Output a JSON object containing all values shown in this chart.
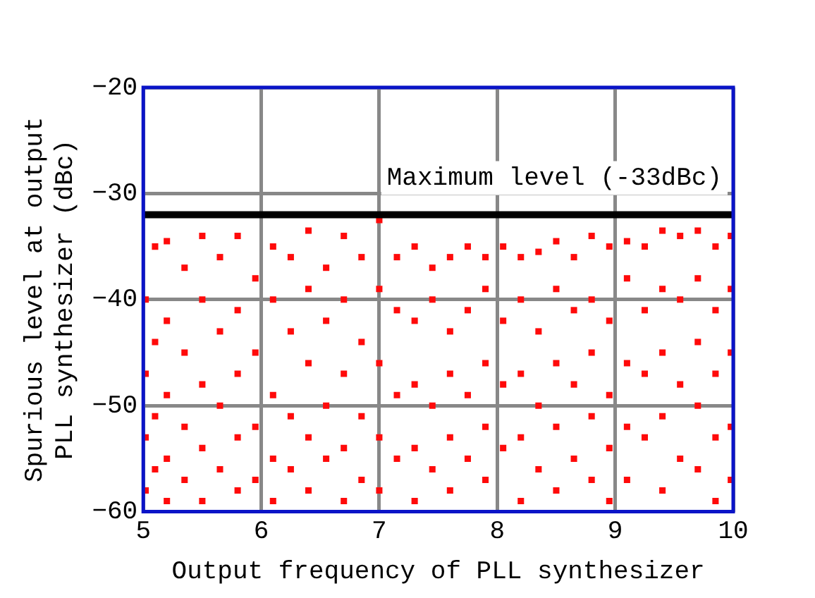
{
  "chart_data": {
    "type": "scatter",
    "xlabel": "Output frequency of PLL synthesizer",
    "ylabel": "Spurious level at output PLL synthesizer (dBc)",
    "xlim": [
      5,
      10
    ],
    "xticks": [
      5,
      6,
      7,
      8,
      9,
      10
    ],
    "ylim": [
      -60,
      -20
    ],
    "yticks": [
      -60,
      -50,
      -40,
      -30,
      -20
    ],
    "grid": true,
    "legend": false,
    "marker": "square",
    "ref_lines": [
      {
        "axis": "y",
        "value": -32,
        "label": "Maximum level (-33dBc)",
        "color": "#000000"
      }
    ],
    "series": [
      {
        "color": "#ff0a0a",
        "x": [
          5.02,
          5.02,
          5.02,
          5.02,
          5.1,
          5.1,
          5.1,
          5.1,
          5.2,
          5.2,
          5.2,
          5.2,
          5.2,
          5.35,
          5.35,
          5.35,
          5.35,
          5.5,
          5.5,
          5.5,
          5.5,
          5.5,
          5.65,
          5.65,
          5.65,
          5.65,
          5.8,
          5.8,
          5.8,
          5.8,
          5.8,
          5.95,
          5.95,
          5.95,
          5.95,
          6.1,
          6.1,
          6.1,
          6.1,
          6.1,
          6.25,
          6.25,
          6.25,
          6.25,
          6.4,
          6.4,
          6.4,
          6.4,
          6.4,
          6.55,
          6.55,
          6.55,
          6.55,
          6.7,
          6.7,
          6.7,
          6.7,
          6.7,
          6.85,
          6.85,
          6.85,
          6.85,
          7.0,
          7.0,
          7.0,
          7.0,
          7.0,
          7.15,
          7.15,
          7.15,
          7.15,
          7.3,
          7.3,
          7.3,
          7.3,
          7.3,
          7.45,
          7.45,
          7.45,
          7.45,
          7.6,
          7.6,
          7.6,
          7.6,
          7.6,
          7.75,
          7.75,
          7.75,
          7.75,
          7.9,
          7.9,
          7.9,
          7.9,
          7.9,
          8.05,
          8.05,
          8.05,
          8.05,
          8.2,
          8.2,
          8.2,
          8.2,
          8.2,
          8.35,
          8.35,
          8.35,
          8.35,
          8.5,
          8.5,
          8.5,
          8.5,
          8.5,
          8.65,
          8.65,
          8.65,
          8.65,
          8.8,
          8.8,
          8.8,
          8.8,
          8.8,
          8.95,
          8.95,
          8.95,
          8.95,
          8.95,
          9.1,
          9.1,
          9.1,
          9.1,
          9.1,
          9.25,
          9.25,
          9.25,
          9.25,
          9.4,
          9.4,
          9.4,
          9.4,
          9.4,
          9.55,
          9.55,
          9.55,
          9.55,
          9.7,
          9.7,
          9.7,
          9.7,
          9.7,
          9.85,
          9.85,
          9.85,
          9.85,
          9.85,
          9.98,
          9.98,
          9.98,
          9.98,
          9.98
        ],
        "values": [
          -40,
          -47,
          -53,
          -58,
          -35,
          -44,
          -51,
          -56,
          -34.5,
          -42,
          -49,
          -55,
          -59,
          -37,
          -45,
          -52,
          -57,
          -34,
          -40,
          -48,
          -54,
          -59,
          -36,
          -43,
          -50,
          -56,
          -34,
          -41,
          -47,
          -53,
          -58,
          -38,
          -45,
          -52,
          -57,
          -35,
          -40,
          -49,
          -55,
          -59,
          -36,
          -43,
          -51,
          -56,
          -33.5,
          -39,
          -46,
          -53,
          -58,
          -37,
          -42,
          -50,
          -55,
          -34,
          -40,
          -47,
          -54,
          -59,
          -36,
          -44,
          -51,
          -57,
          -32.5,
          -39,
          -46,
          -53,
          -58,
          -36,
          -41,
          -49,
          -55,
          -35,
          -42,
          -48,
          -54,
          -59,
          -37,
          -40,
          -50,
          -56,
          -36,
          -43,
          -47,
          -53,
          -58,
          -35,
          -41,
          -49,
          -55,
          -36,
          -39,
          -46,
          -52,
          -57,
          -35,
          -42,
          -48,
          -54,
          -36,
          -40,
          -47,
          -53,
          -59,
          -35.5,
          -43,
          -50,
          -56,
          -34.5,
          -39,
          -46,
          -52,
          -58,
          -36,
          -41,
          -48,
          -55,
          -34,
          -40,
          -45,
          -51,
          -57,
          -35,
          -42,
          -49,
          -54,
          -59,
          -34.5,
          -38,
          -46,
          -52,
          -57,
          -35,
          -41,
          -47,
          -53,
          -33.5,
          -39,
          -45,
          -51,
          -58,
          -34,
          -40,
          -48,
          -55,
          -33.5,
          -38,
          -44,
          -50,
          -56,
          -35,
          -41,
          -47,
          -53,
          -59,
          -34,
          -39,
          -45,
          -52,
          -57
        ]
      }
    ]
  }
}
